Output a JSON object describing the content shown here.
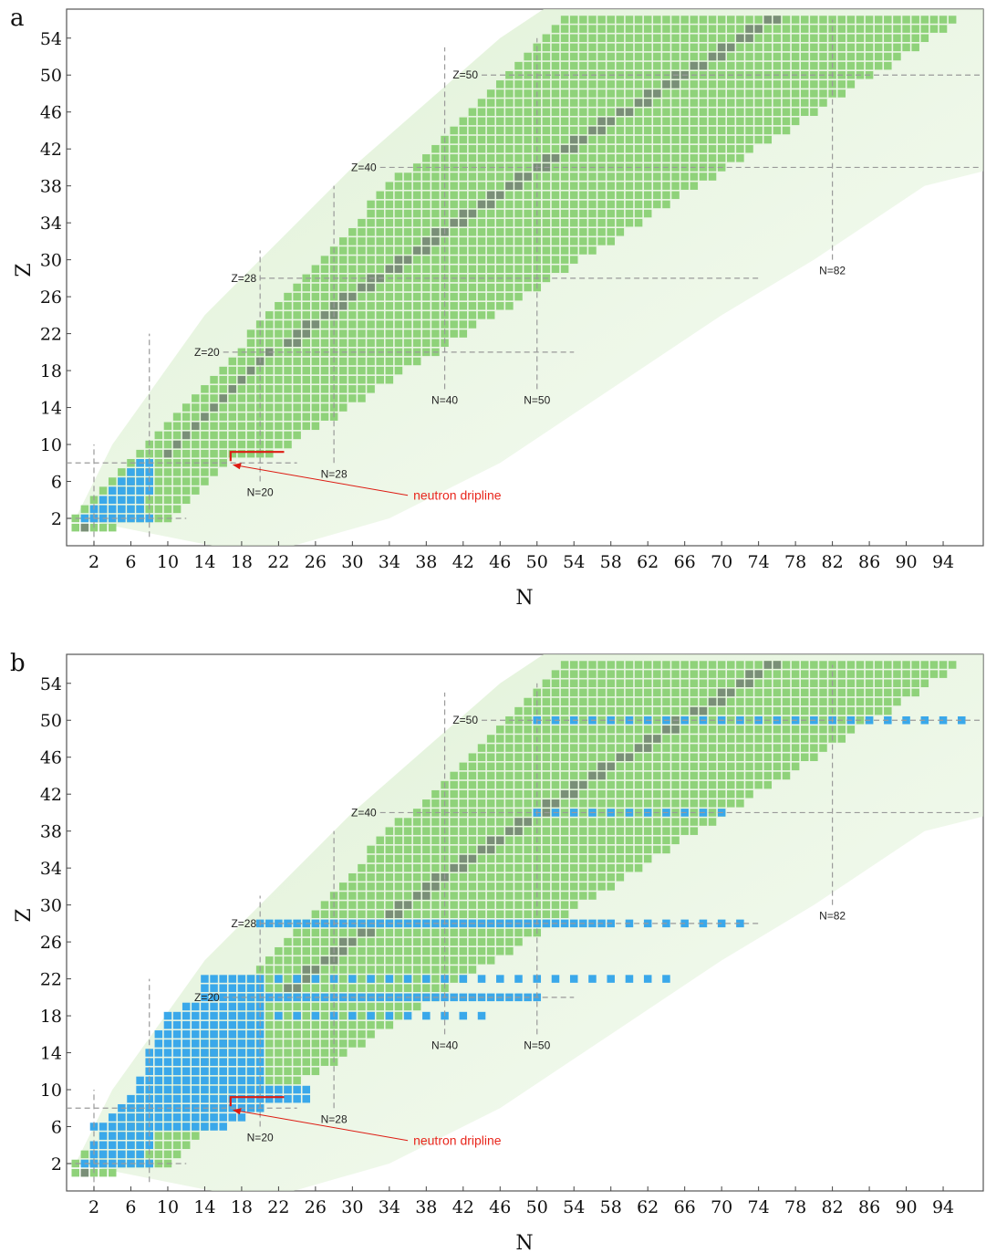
{
  "chart_data": [
    {
      "type": "heatmap",
      "panel_label": "a",
      "xlabel": "N",
      "ylabel": "Z",
      "xlim": [
        -1,
        98
      ],
      "ylim": [
        -2,
        57
      ],
      "x_ticks": [
        2,
        6,
        10,
        14,
        18,
        22,
        26,
        30,
        34,
        38,
        42,
        46,
        50,
        54,
        58,
        62,
        66,
        70,
        74,
        78,
        82,
        86,
        90,
        94
      ],
      "y_ticks": [
        2,
        6,
        10,
        14,
        18,
        22,
        26,
        30,
        34,
        38,
        42,
        46,
        50,
        54
      ],
      "magic_lines": [
        {
          "label": "Z=50",
          "axis": "Z",
          "value": 50,
          "from": 44,
          "to": 98
        },
        {
          "label": "Z=40",
          "axis": "Z",
          "value": 40,
          "from": 33,
          "to": 98
        },
        {
          "label": "Z=28",
          "axis": "Z",
          "value": 28,
          "from": 20,
          "to": 74
        },
        {
          "label": "Z=20",
          "axis": "Z",
          "value": 20,
          "from": 16,
          "to": 54
        },
        {
          "label": "N=82",
          "axis": "N",
          "value": 82,
          "from": 30,
          "to": 56
        },
        {
          "label": "N=50",
          "axis": "N",
          "value": 50,
          "from": 16,
          "to": 54
        },
        {
          "label": "N=40",
          "axis": "N",
          "value": 40,
          "from": 16,
          "to": 53
        },
        {
          "label": "N=28",
          "axis": "N",
          "value": 28,
          "from": 8,
          "to": 38
        },
        {
          "label": "N=20",
          "axis": "N",
          "value": 20,
          "from": 6,
          "to": 31
        },
        {
          "label": "",
          "axis": "N",
          "value": 8,
          "from": 0,
          "to": 22
        },
        {
          "label": "",
          "axis": "N",
          "value": 2,
          "from": -1,
          "to": 10
        },
        {
          "label": "",
          "axis": "Z",
          "value": 8,
          "from": -1,
          "to": 24
        },
        {
          "label": "",
          "axis": "Z",
          "value": 2,
          "from": -1,
          "to": 12
        }
      ],
      "annotation": {
        "text": "neutron dripline",
        "arrow_from": [
          36,
          4.5
        ],
        "arrow_to": [
          17,
          7.8
        ]
      },
      "highlight_cells": [
        {
          "n_from": 1,
          "n_to": 8,
          "z": 2
        },
        {
          "n_from": 2,
          "n_to": 7,
          "z": 3
        },
        {
          "n_from": 3,
          "n_to": 7,
          "z": 4
        },
        {
          "n_from": 4,
          "n_to": 8,
          "z": 5
        },
        {
          "n_from": 5,
          "n_to": 8,
          "z": 6
        },
        {
          "n_from": 6,
          "n_to": 8,
          "z": 7
        },
        {
          "n_from": 7,
          "n_to": 8,
          "z": 8
        }
      ],
      "colors": {
        "nuclei": "#8fd27a",
        "stable": "#7a8f78",
        "calculated": "#3aa8ea",
        "dripline": "#dd1b12",
        "band": "#dff1d5",
        "grid": "#9a9a9a"
      }
    },
    {
      "type": "heatmap",
      "panel_label": "b",
      "xlabel": "N",
      "ylabel": "Z",
      "xlim": [
        -1,
        98
      ],
      "ylim": [
        -2,
        57
      ],
      "x_ticks": [
        2,
        6,
        10,
        14,
        18,
        22,
        26,
        30,
        34,
        38,
        42,
        46,
        50,
        54,
        58,
        62,
        66,
        70,
        74,
        78,
        82,
        86,
        90,
        94
      ],
      "y_ticks": [
        2,
        6,
        10,
        14,
        18,
        22,
        26,
        30,
        34,
        38,
        42,
        46,
        50,
        54
      ],
      "magic_lines": [
        {
          "label": "Z=50",
          "axis": "Z",
          "value": 50,
          "from": 44,
          "to": 98
        },
        {
          "label": "Z=40",
          "axis": "Z",
          "value": 40,
          "from": 33,
          "to": 98
        },
        {
          "label": "Z=28",
          "axis": "Z",
          "value": 28,
          "from": 20,
          "to": 74
        },
        {
          "label": "Z=20",
          "axis": "Z",
          "value": 20,
          "from": 16,
          "to": 54
        },
        {
          "label": "N=82",
          "axis": "N",
          "value": 82,
          "from": 30,
          "to": 56
        },
        {
          "label": "N=50",
          "axis": "N",
          "value": 50,
          "from": 16,
          "to": 54
        },
        {
          "label": "N=40",
          "axis": "N",
          "value": 40,
          "from": 16,
          "to": 53
        },
        {
          "label": "N=28",
          "axis": "N",
          "value": 28,
          "from": 8,
          "to": 38
        },
        {
          "label": "N=20",
          "axis": "N",
          "value": 20,
          "from": 6,
          "to": 31
        },
        {
          "label": "",
          "axis": "N",
          "value": 8,
          "from": 0,
          "to": 22
        },
        {
          "label": "",
          "axis": "N",
          "value": 2,
          "from": -1,
          "to": 10
        },
        {
          "label": "",
          "axis": "Z",
          "value": 8,
          "from": -1,
          "to": 24
        },
        {
          "label": "",
          "axis": "Z",
          "value": 2,
          "from": -1,
          "to": 12
        }
      ],
      "annotation": {
        "text": "neutron dripline",
        "arrow_from": [
          36,
          4.5
        ],
        "arrow_to": [
          17,
          7.8
        ]
      },
      "highlight_cells": [
        {
          "n_from": 1,
          "n_to": 8,
          "z": 2
        },
        {
          "n_from": 2,
          "n_to": 7,
          "z": 3
        },
        {
          "n_from": 2,
          "n_to": 8,
          "z": 4
        },
        {
          "n_from": 3,
          "n_to": 8,
          "z": 5
        },
        {
          "n_from": 2,
          "n_to": 16,
          "z": 6
        },
        {
          "n_from": 4,
          "n_to": 18,
          "z": 7
        },
        {
          "n_from": 5,
          "n_to": 20,
          "z": 8
        },
        {
          "n_from": 6,
          "n_to": 25,
          "z": 9
        },
        {
          "n_from": 7,
          "n_to": 25,
          "z": 10
        },
        {
          "n_from": 7,
          "n_to": 20,
          "z": 11
        },
        {
          "n_from": 8,
          "n_to": 20,
          "z": 12
        },
        {
          "n_from": 8,
          "n_to": 20,
          "z": 13
        },
        {
          "n_from": 8,
          "n_to": 20,
          "z": 14
        },
        {
          "n_from": 9,
          "n_to": 20,
          "z": 15
        },
        {
          "n_from": 9,
          "n_to": 20,
          "z": 16
        },
        {
          "n_from": 10,
          "n_to": 20,
          "z": 17
        },
        {
          "n_from": 10,
          "n_to": 20,
          "z": 18
        },
        {
          "n_from": 12,
          "n_to": 20,
          "z": 19
        },
        {
          "n_from": 14,
          "n_to": 20,
          "z": 20
        },
        {
          "n_from": 14,
          "n_to": 20,
          "z": 21
        },
        {
          "n_from": 14,
          "n_to": 20,
          "z": 22
        }
      ],
      "highlight_rows": [
        {
          "z": 50,
          "n_from": 50,
          "n_to": 96,
          "step": 2
        },
        {
          "z": 40,
          "n_from": 50,
          "n_to": 70,
          "step": 2
        },
        {
          "z": 28,
          "n_from": 20,
          "n_to": 58,
          "step": 1
        },
        {
          "z": 28,
          "n_from": 60,
          "n_to": 72,
          "step": 2
        },
        {
          "z": 22,
          "n_from": 22,
          "n_to": 64,
          "step": 2
        },
        {
          "z": 20,
          "n_from": 20,
          "n_to": 50,
          "step": 1
        },
        {
          "z": 18,
          "n_from": 20,
          "n_to": 44,
          "step": 2
        }
      ],
      "colors": {
        "nuclei": "#8fd27a",
        "stable": "#7a8f78",
        "calculated": "#3aa8ea",
        "dripline": "#dd1b12",
        "band": "#dff1d5",
        "grid": "#9a9a9a"
      }
    }
  ]
}
